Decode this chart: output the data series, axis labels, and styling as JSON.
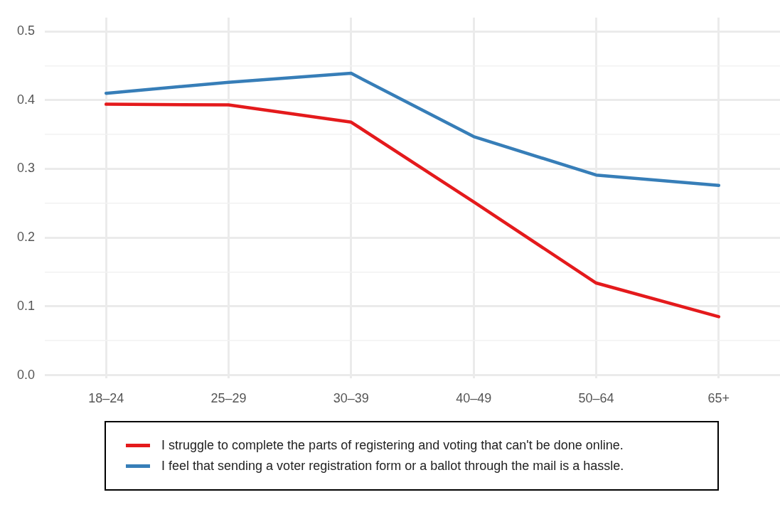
{
  "chart_data": {
    "type": "line",
    "categories": [
      "18–24",
      "25–29",
      "30–39",
      "40–49",
      "50–64",
      "65+"
    ],
    "series": [
      {
        "name": "I struggle to complete the parts of registering and voting that can't be done online.",
        "color": "#e41a1c",
        "values": [
          0.394,
          0.393,
          0.368,
          0.252,
          0.134,
          0.085
        ]
      },
      {
        "name": "I feel that sending a voter registration form or a ballot through the mail is a hassle.",
        "color": "#377eb8",
        "values": [
          0.41,
          0.426,
          0.439,
          0.347,
          0.291,
          0.276
        ]
      }
    ],
    "ylim": [
      -0.005,
      0.52
    ],
    "yticks": [
      {
        "value": 0,
        "label": "0.0"
      },
      {
        "value": 0.05,
        "label": null
      },
      0.1,
      {
        "value": 0.15,
        "label": null
      },
      0.2,
      {
        "value": 0.25,
        "label": null
      },
      0.3,
      {
        "value": 0.35,
        "label": null
      },
      0.4,
      {
        "value": 0.45,
        "label": null
      },
      0.5
    ],
    "grid": true,
    "legend": "bottom",
    "marker": "none",
    "line_style": "solid"
  }
}
